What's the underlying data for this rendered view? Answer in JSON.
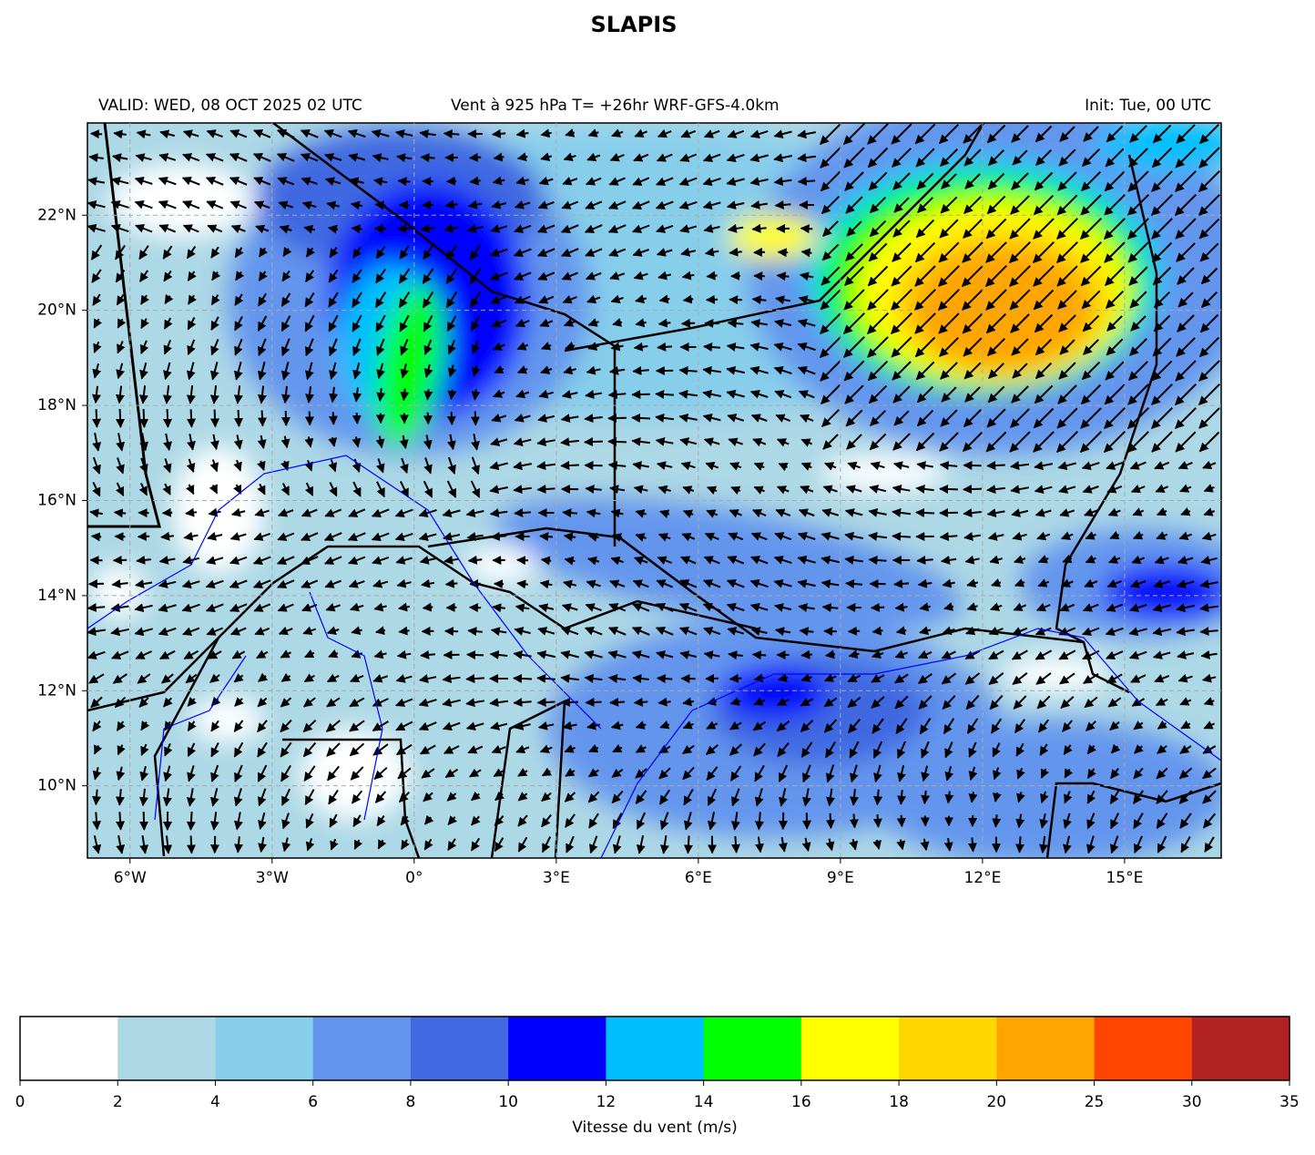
{
  "title": "SLAPIS",
  "header": {
    "left": "VALID: WED, 08 OCT 2025 02 UTC",
    "center": "Vent à 925 hPa T= +26hr  WRF-GFS-4.0km",
    "right": "Init: Tue, 00 UTC"
  },
  "map": {
    "lon_range": [
      -6.9,
      17.04
    ],
    "lat_range": [
      8.48,
      23.94
    ],
    "lon_ticks": [
      {
        "value": -6,
        "label": "6°W"
      },
      {
        "value": -3,
        "label": "3°W"
      },
      {
        "value": 0,
        "label": "0°"
      },
      {
        "value": 3,
        "label": "3°E"
      },
      {
        "value": 6,
        "label": "6°E"
      },
      {
        "value": 9,
        "label": "9°E"
      },
      {
        "value": 12,
        "label": "12°E"
      },
      {
        "value": 15,
        "label": "15°E"
      }
    ],
    "lat_ticks": [
      {
        "value": 10,
        "label": "10°N"
      },
      {
        "value": 12,
        "label": "12°N"
      },
      {
        "value": 14,
        "label": "14°N"
      },
      {
        "value": 16,
        "label": "16°N"
      },
      {
        "value": 18,
        "label": "18°N"
      },
      {
        "value": 20,
        "label": "20°N"
      },
      {
        "value": 22,
        "label": "22°N"
      }
    ]
  },
  "colorbar": {
    "levels": [
      0,
      2,
      4,
      6,
      8,
      10,
      12,
      14,
      16,
      18,
      20,
      25,
      30,
      35
    ],
    "colors": [
      "#ffffff",
      "#add8e6",
      "#87ceeb",
      "#6495ed",
      "#4169e1",
      "#0000ff",
      "#00bfff",
      "#00ff00",
      "#ffff00",
      "#ffd700",
      "#ffa500",
      "#ff4500",
      "#b22222"
    ],
    "label": "Vitesse du vent (m/s)"
  }
}
